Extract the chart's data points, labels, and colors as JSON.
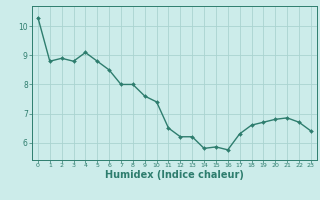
{
  "x": [
    0,
    1,
    2,
    3,
    4,
    5,
    6,
    7,
    8,
    9,
    10,
    11,
    12,
    13,
    14,
    15,
    16,
    17,
    18,
    19,
    20,
    21,
    22,
    23
  ],
  "y": [
    10.3,
    8.8,
    8.9,
    8.8,
    9.1,
    8.8,
    8.5,
    8.0,
    8.0,
    7.6,
    7.4,
    6.5,
    6.2,
    6.2,
    5.8,
    5.85,
    5.75,
    6.3,
    6.6,
    6.7,
    6.8,
    6.85,
    6.7,
    6.4
  ],
  "line_color": "#2e7d6e",
  "marker": "D",
  "marker_size": 2.0,
  "line_width": 1.0,
  "bg_color": "#ccecea",
  "grid_color": "#aad4d0",
  "tick_color": "#2e7d6e",
  "xlabel": "Humidex (Indice chaleur)",
  "xlabel_fontsize": 7,
  "xlabel_color": "#2e7d6e",
  "yticks": [
    6,
    7,
    8,
    9,
    10
  ],
  "xticks": [
    0,
    1,
    2,
    3,
    4,
    5,
    6,
    7,
    8,
    9,
    10,
    11,
    12,
    13,
    14,
    15,
    16,
    17,
    18,
    19,
    20,
    21,
    22,
    23
  ],
  "ylim": [
    5.4,
    10.7
  ],
  "xlim": [
    -0.5,
    23.5
  ]
}
